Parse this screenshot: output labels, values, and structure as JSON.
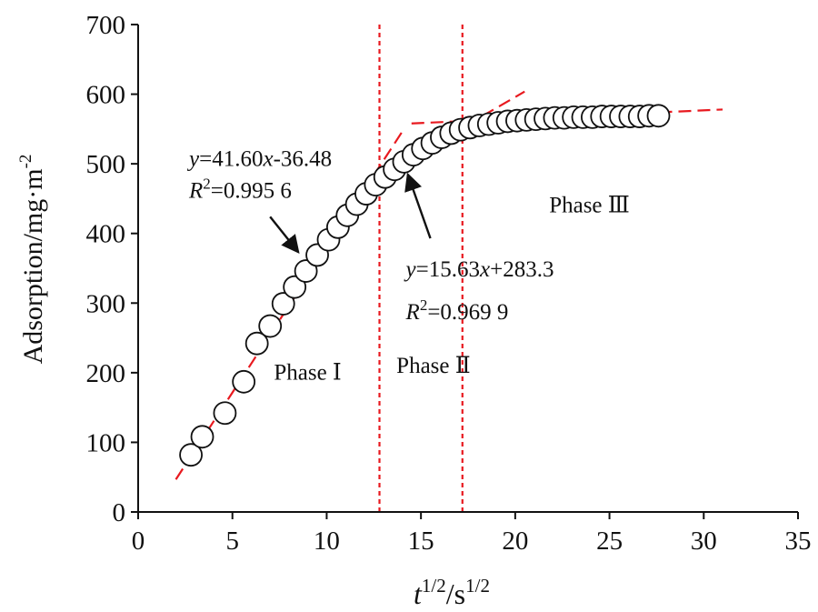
{
  "chart_data": {
    "type": "scatter",
    "xlabel_base": "t",
    "xlabel_sup1": "1/2",
    "xlabel_mid": "/s",
    "xlabel_sup2": "1/2",
    "ylabel_base": "Adsorption/mg·m",
    "ylabel_sup": "-2",
    "xlim": [
      0,
      35
    ],
    "ylim": [
      0,
      700
    ],
    "xticks": [
      "0",
      "5",
      "10",
      "15",
      "20",
      "25",
      "30",
      "35"
    ],
    "yticks": [
      "0",
      "100",
      "200",
      "300",
      "400",
      "500",
      "600",
      "700"
    ],
    "grid": false,
    "colors": {
      "points": "#111111",
      "fit": "#e8191f",
      "boundary": "#e8191f"
    },
    "phase_boundaries": [
      12.8,
      17.2
    ],
    "phases": [
      {
        "label": "Phase Ⅰ",
        "x": 7.2,
        "y": 190
      },
      {
        "label": "Phase Ⅱ",
        "x": 13.7,
        "y": 200
      },
      {
        "label": "Phase Ⅲ",
        "x": 21.8,
        "y": 430
      }
    ],
    "fits": [
      {
        "x_start": 2.0,
        "x_end": 14.0,
        "intercept": -36.48,
        "slope": 41.6
      },
      {
        "x_start": 13.0,
        "x_end": 20.5,
        "intercept": 283.3,
        "slope": 15.63
      },
      {
        "points": [
          [
            14.5,
            558
          ],
          [
            31.0,
            578
          ]
        ]
      }
    ],
    "annotations": [
      {
        "eq_y": "y",
        "eq_mid": "=41.60",
        "eq_x": "x",
        "eq_tail": "-36.48",
        "r_base": "R",
        "r_sup": "2",
        "r_tail": "=0.995 6",
        "eq_pos": [
          2.7,
          497
        ],
        "r_pos": [
          2.7,
          451
        ],
        "arrow_from": [
          7.0,
          424
        ],
        "arrow_to": [
          8.5,
          373
        ]
      },
      {
        "eq_y": "y",
        "eq_mid": "=15.63",
        "eq_x": "x",
        "eq_tail": "+283.3",
        "r_base": "R",
        "r_sup": "2",
        "r_tail": "=0.969 9",
        "eq_pos": [
          14.2,
          338
        ],
        "r_pos": [
          14.2,
          277
        ],
        "arrow_from": [
          15.5,
          393
        ],
        "arrow_to": [
          14.3,
          485
        ]
      }
    ],
    "series": [
      {
        "x": [
          2.8,
          3.4,
          4.6,
          5.6,
          6.3,
          7.0,
          7.7,
          8.3,
          8.9,
          9.5,
          10.1,
          10.6,
          11.1,
          11.6,
          12.1,
          12.6,
          13.1,
          13.6,
          14.1,
          14.6,
          15.1,
          15.6,
          16.1,
          16.6,
          17.1,
          17.6,
          18.1,
          18.6,
          19.1,
          19.6,
          20.1,
          20.6,
          21.1,
          21.6,
          22.1,
          22.6,
          23.1,
          23.6,
          24.1,
          24.6,
          25.1,
          25.6,
          26.1,
          26.6,
          27.1,
          27.6
        ],
        "y": [
          82,
          108,
          142,
          187,
          242,
          267,
          299,
          323,
          346,
          369,
          391,
          409,
          426,
          442,
          457,
          470,
          481,
          492,
          503,
          513,
          522,
          530,
          538,
          544,
          549,
          552,
          555,
          557,
          559,
          561,
          562,
          563,
          564,
          565,
          566,
          566,
          567,
          567,
          567,
          568,
          568,
          568,
          568,
          568,
          569,
          569
        ]
      }
    ]
  }
}
